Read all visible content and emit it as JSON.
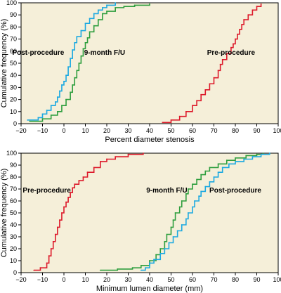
{
  "chart_data": [
    {
      "type": "line",
      "title": "",
      "xlabel": "Percent diameter stenosis",
      "ylabel": "Cumulative frequency (%)",
      "xlim": [
        -20,
        100
      ],
      "ylim": [
        0,
        100
      ],
      "xticks": [
        -20,
        -10,
        0,
        10,
        20,
        30,
        40,
        50,
        60,
        70,
        80,
        90,
        100
      ],
      "yticks": [
        0,
        10,
        20,
        30,
        40,
        50,
        60,
        70,
        80,
        90,
        100
      ],
      "grid": false,
      "series": [
        {
          "name": "Post-procedure",
          "color": "#1ca9e1",
          "label_at": [
            -12,
            57
          ],
          "x": [
            -17,
            -12,
            -10,
            -8,
            -6,
            -4,
            -3,
            -2,
            -1,
            0,
            1,
            2,
            3,
            4,
            5,
            6,
            8,
            10,
            12,
            14,
            16,
            18,
            20,
            24
          ],
          "y": [
            3,
            5,
            8,
            11,
            15,
            18,
            22,
            27,
            32,
            35,
            40,
            47,
            54,
            61,
            67,
            72,
            77,
            83,
            87,
            91,
            94,
            96,
            98,
            100
          ]
        },
        {
          "name": "9-month F/U",
          "color": "#2e9e3e",
          "label_at": [
            19,
            57
          ],
          "x": [
            -16,
            -10,
            -6,
            -3,
            -1,
            1,
            3,
            4,
            5,
            6,
            7,
            8,
            9,
            10,
            11,
            12,
            14,
            16,
            18,
            20,
            24,
            28,
            33,
            40
          ],
          "y": [
            2,
            4,
            7,
            10,
            15,
            20,
            26,
            32,
            38,
            44,
            50,
            56,
            62,
            67,
            71,
            76,
            81,
            86,
            91,
            93,
            96,
            97,
            98,
            99
          ]
        },
        {
          "name": "Pre-procedure",
          "color": "#dd1a2b",
          "label_at": [
            78,
            57
          ],
          "x": [
            46,
            50,
            54,
            57,
            60,
            62,
            64,
            66,
            68,
            70,
            72,
            73,
            74,
            76,
            78,
            79,
            80,
            81,
            82,
            83,
            84,
            86,
            88,
            90,
            92
          ],
          "y": [
            1,
            3,
            6,
            10,
            15,
            19,
            24,
            28,
            33,
            38,
            44,
            49,
            53,
            58,
            63,
            66,
            70,
            74,
            78,
            82,
            86,
            90,
            94,
            97,
            99
          ]
        }
      ]
    },
    {
      "type": "line",
      "title": "",
      "xlabel": "Minimum lumen diameter (mm)",
      "ylabel": "Cumulative frequency (%)",
      "xlim": [
        -20,
        100
      ],
      "ylim": [
        0,
        100
      ],
      "xticks": [
        -20,
        -10,
        0,
        10,
        20,
        30,
        40,
        50,
        60,
        70,
        80,
        90,
        100
      ],
      "yticks": [
        0,
        10,
        20,
        30,
        40,
        50,
        60,
        70,
        80,
        90,
        100
      ],
      "grid": false,
      "series": [
        {
          "name": "Pre-procedure",
          "color": "#dd1a2b",
          "label_at": [
            -8,
            67
          ],
          "x": [
            -14,
            -11,
            -8,
            -7,
            -6,
            -5,
            -4,
            -3,
            -2,
            -1,
            0,
            1,
            2,
            3,
            4,
            5,
            7,
            9,
            11,
            14,
            17,
            20,
            24,
            30,
            37
          ],
          "y": [
            2,
            4,
            8,
            14,
            20,
            26,
            32,
            38,
            44,
            50,
            55,
            59,
            63,
            67,
            71,
            74,
            77,
            80,
            84,
            88,
            93,
            95,
            97,
            99,
            100
          ]
        },
        {
          "name": "9-month F/U",
          "color": "#2e9e3e",
          "label_at": [
            48,
            67
          ],
          "x": [
            17,
            25,
            32,
            36,
            40,
            43,
            45,
            47,
            48,
            50,
            51,
            52,
            54,
            55,
            57,
            58,
            60,
            62,
            64,
            66,
            68,
            72,
            76,
            80,
            85,
            90,
            93
          ],
          "y": [
            2,
            3,
            4,
            6,
            10,
            15,
            20,
            26,
            32,
            38,
            44,
            50,
            55,
            60,
            66,
            70,
            74,
            78,
            82,
            85,
            88,
            91,
            94,
            96,
            98,
            99,
            100
          ]
        },
        {
          "name": "Post-procedure",
          "color": "#1ca9e1",
          "label_at": [
            80,
            67
          ],
          "x": [
            36,
            38,
            40,
            42,
            45,
            47,
            49,
            51,
            53,
            55,
            57,
            58,
            60,
            61,
            63,
            64,
            66,
            68,
            70,
            72,
            74,
            77,
            80,
            84,
            88,
            92,
            96
          ],
          "y": [
            2,
            4,
            8,
            11,
            16,
            20,
            25,
            30,
            35,
            40,
            45,
            50,
            55,
            60,
            64,
            68,
            72,
            76,
            80,
            84,
            88,
            91,
            93,
            95,
            97,
            99,
            100
          ]
        }
      ]
    }
  ]
}
